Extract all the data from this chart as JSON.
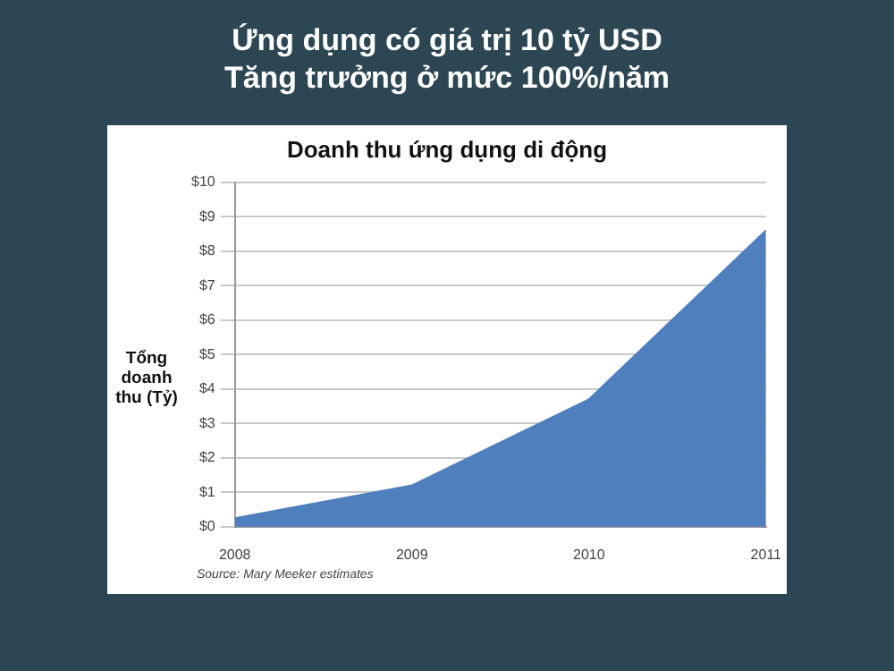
{
  "chart_data": {
    "type": "area",
    "title": "Ứng dụng có giá trị 10 tỷ USD",
    "subtitle": "Tăng trưởng ở mức 100%/năm",
    "ylabel": "Tổng doanh thu (Tỷ)",
    "annotations": [
      "Doanh thu ứng dụng di động",
      "Source: Mary Meeker estimates"
    ],
    "x": [
      2008,
      2009,
      2010,
      2011
    ],
    "series": [
      {
        "color": "#4f7fbd",
        "values": [
          0.25,
          1.2,
          3.7,
          8.6
        ]
      }
    ],
    "xlim": [
      2008,
      2011
    ],
    "xticks": [
      2008,
      2009,
      2010,
      2011
    ],
    "ylim": [
      0,
      10
    ],
    "yticks": [
      {
        "value": 0,
        "label": "$0"
      },
      {
        "value": 1,
        "label": "$1"
      },
      {
        "value": 2,
        "label": "$2"
      },
      {
        "value": 3,
        "label": "$3"
      },
      {
        "value": 4,
        "label": "$4"
      },
      {
        "value": 5,
        "label": "$5"
      },
      {
        "value": 6,
        "label": "$6"
      },
      {
        "value": 7,
        "label": "$7"
      },
      {
        "value": 8,
        "label": "$8"
      },
      {
        "value": 9,
        "label": "$9"
      },
      {
        "value": 10,
        "label": "$10"
      }
    ],
    "grid": "y",
    "legend": false,
    "marker": "none"
  }
}
